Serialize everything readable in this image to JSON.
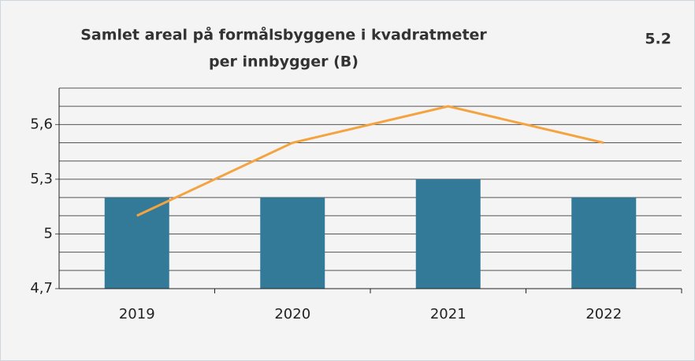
{
  "chart_data": {
    "type": "bar",
    "title": "Samlet areal på formålsbyggene i kvadratmeter",
    "subtitle": "per innbygger (B)",
    "annotation": "5.2",
    "categories": [
      "2019",
      "2020",
      "2021",
      "2022"
    ],
    "series": [
      {
        "type": "bar",
        "color": "#337a99",
        "values": [
          5.2,
          5.2,
          5.3,
          5.2
        ]
      },
      {
        "type": "line",
        "color": "#f4a340",
        "values": [
          5.1,
          5.5,
          5.7,
          5.5
        ]
      }
    ],
    "ylim": [
      4.7,
      5.8
    ],
    "yticks": [
      {
        "value": 4.7,
        "label": "4,7"
      },
      5,
      {
        "value": 5.3,
        "label": "5,3"
      },
      {
        "value": 5.6,
        "label": "5,6"
      }
    ],
    "minor_yticks": [
      4.8,
      4.9,
      5.1,
      5.2,
      5.4,
      5.5,
      5.7,
      5.8
    ],
    "grid": true
  }
}
